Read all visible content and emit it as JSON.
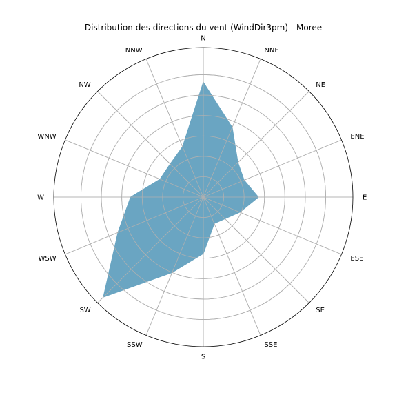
{
  "chart_data": {
    "type": "area",
    "projection": "polar",
    "title": "Distribution des directions du vent (WindDir3pm) - Moree",
    "categories": [
      "N",
      "NNE",
      "NE",
      "ENE",
      "E",
      "ESE",
      "SE",
      "SSE",
      "S",
      "SSW",
      "SW",
      "WSW",
      "W",
      "WNW",
      "NW",
      "NNW"
    ],
    "series": [
      {
        "values": [
          169,
          111,
          72,
          65,
          81,
          58,
          45,
          42,
          83,
          120,
          208,
          136,
          107,
          69,
          69,
          80
        ],
        "color": "#6aa5c2"
      }
    ],
    "rlim": [
      0,
      220
    ],
    "r_gridlines": [
      30,
      60,
      90,
      120,
      150,
      180
    ],
    "r_tick_labels_shown": false,
    "theta_zero": "north",
    "theta_direction": "clockwise",
    "grid": true,
    "colors": {
      "fill": "#6aa5c2",
      "grid": "#b0b0b0",
      "outline": "#000000"
    }
  }
}
